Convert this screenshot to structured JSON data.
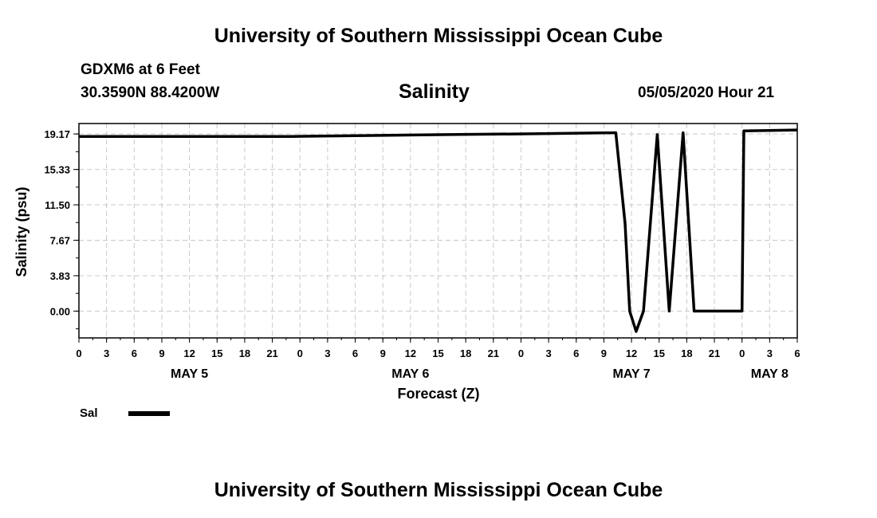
{
  "header": {
    "title": "University of Southern Mississippi Ocean Cube",
    "station": "GDXM6 at 6 Feet",
    "location": "30.3590N 88.4200W",
    "timestamp": "05/05/2020 Hour 21",
    "footer_title": "University of Southern Mississippi Ocean Cube"
  },
  "chart_data": {
    "type": "line",
    "title": "Salinity",
    "xlabel": "Forecast (Z)",
    "ylabel": "Salinity (psu)",
    "ylim": [
      -2.9,
      20.3
    ],
    "yticks": [
      "0.00",
      "3.83",
      "7.67",
      "11.50",
      "15.33",
      "19.17"
    ],
    "ytick_values": [
      0.0,
      3.83,
      7.67,
      11.5,
      15.33,
      19.17
    ],
    "xlim": [
      0,
      78
    ],
    "xtick_hours": [
      0,
      3,
      6,
      9,
      12,
      15,
      18,
      21,
      24,
      27,
      30,
      33,
      36,
      39,
      42,
      45,
      48,
      51,
      54,
      57,
      60,
      63,
      66,
      69,
      72,
      75,
      78
    ],
    "xtick_labels": [
      "0",
      "3",
      "6",
      "9",
      "12",
      "15",
      "18",
      "21",
      "0",
      "3",
      "6",
      "9",
      "12",
      "15",
      "18",
      "21",
      "0",
      "3",
      "6",
      "9",
      "12",
      "15",
      "18",
      "21",
      "0",
      "3",
      "6"
    ],
    "day_labels": [
      {
        "label": "MAY 5",
        "hour": 12
      },
      {
        "label": "MAY 6",
        "hour": 36
      },
      {
        "label": "MAY 7",
        "hour": 60
      },
      {
        "label": "MAY 8",
        "hour": 75
      }
    ],
    "grid": true,
    "legend": "bottom-left",
    "series": [
      {
        "name": "Sal",
        "color": "#000000",
        "x": [
          0,
          9,
          23,
          31,
          40,
          50,
          58,
          58.3,
          59.3,
          59.8,
          60.5,
          61.3,
          62.8,
          64.1,
          65.6,
          66.8,
          72,
          72.2,
          78
        ],
        "y": [
          18.9,
          18.9,
          18.9,
          19.0,
          19.1,
          19.2,
          19.3,
          19.3,
          9.5,
          0.0,
          -2.2,
          0.0,
          19.1,
          0.0,
          19.3,
          0.0,
          0.0,
          19.5,
          19.6
        ]
      }
    ]
  }
}
